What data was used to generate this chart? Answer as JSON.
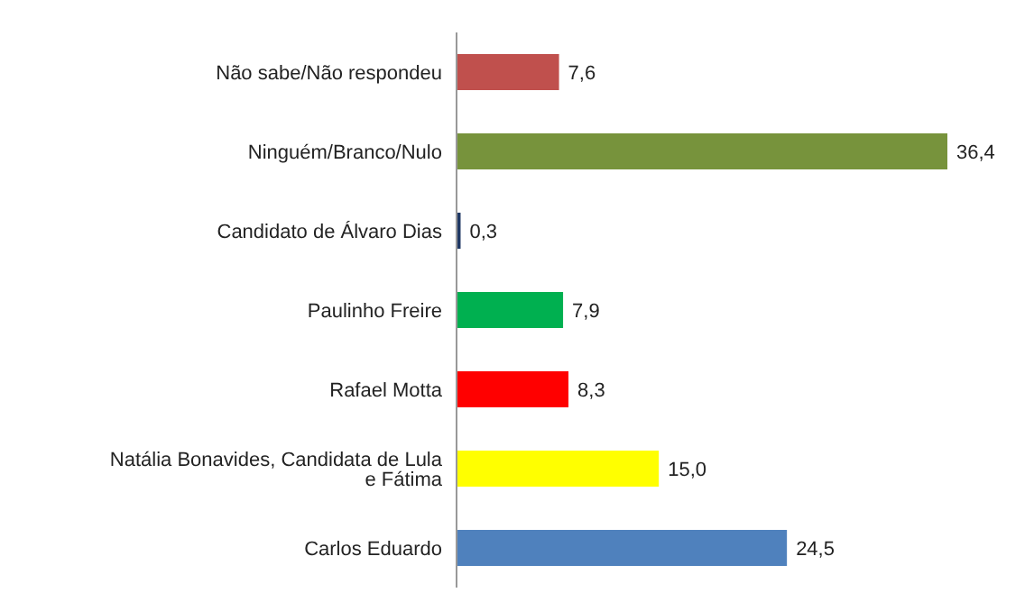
{
  "chart_data": {
    "type": "bar",
    "orientation": "horizontal",
    "relative": false,
    "categories": [
      "Não sabe/Não respondeu",
      "Ninguém/Branco/Nulo",
      "Candidato de Álvaro Dias",
      "Paulinho Freire",
      "Rafael Motta",
      "Natália Bonavides, Candidata de Lula e Fátima",
      "Carlos Eduardo"
    ],
    "values": [
      7.6,
      36.4,
      0.3,
      7.9,
      8.3,
      15.0,
      24.5
    ],
    "value_labels": [
      "7,6",
      "36,4",
      "0,3",
      "7,9",
      "8,3",
      "15,0",
      "24,5"
    ],
    "colors": [
      "#c0504d",
      "#77933c",
      "#1f3864",
      "#00b050",
      "#ff0000",
      "#ffff00",
      "#4f81bd"
    ],
    "grid": false,
    "legend": false
  }
}
